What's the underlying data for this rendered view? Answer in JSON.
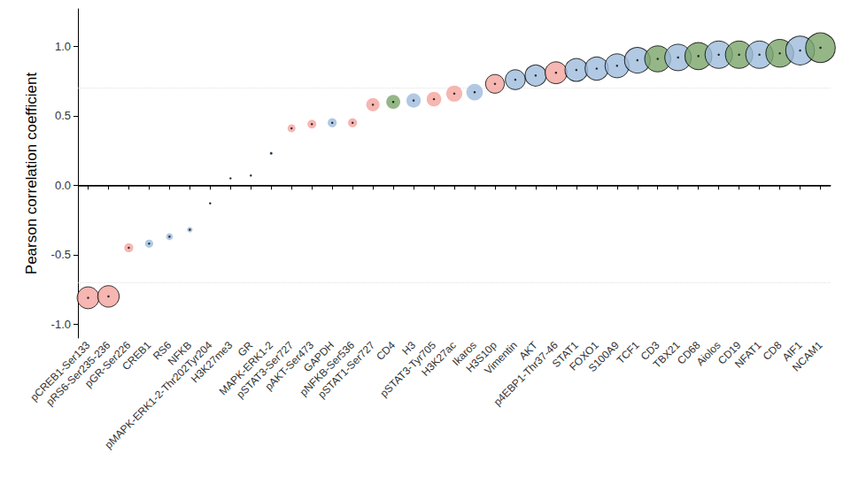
{
  "chart_data": {
    "type": "scatter",
    "y_label": "Pearson correlation coefficient",
    "categories": [
      "pCREB1-Ser133",
      "pRS6-Ser235-236",
      "pGR-Ser226",
      "CREB1",
      "RS6",
      "NFKB",
      "pMAPK-ERK1-2-Thr202Tyr204",
      "H3K27me3",
      "GR",
      "MAPK-ERK1-2",
      "pSTAT3-Ser727",
      "pAKT-Ser473",
      "GAPDH",
      "pNFKB-Ser536",
      "pSTAT1-Ser727",
      "CD4",
      "H3",
      "pSTAT3-Tyr705",
      "H3K27ac",
      "Ikaros",
      "H3S10p",
      "Vimentin",
      "AKT",
      "p4EBP1-Thr37-46",
      "STAT1",
      "FOXO1",
      "S100A9",
      "TCF1",
      "CD3",
      "TBX21",
      "CD68",
      "Aiolos",
      "CD19",
      "NFAT1",
      "CD8",
      "AIF1",
      "NCAM1"
    ],
    "values": [
      -0.81,
      -0.8,
      -0.45,
      -0.42,
      -0.37,
      -0.32,
      -0.13,
      0.05,
      0.07,
      0.23,
      0.41,
      0.44,
      0.45,
      0.45,
      0.58,
      0.6,
      0.61,
      0.62,
      0.66,
      0.67,
      0.73,
      0.76,
      0.79,
      0.81,
      0.83,
      0.84,
      0.86,
      0.9,
      0.91,
      0.92,
      0.93,
      0.94,
      0.94,
      0.94,
      0.95,
      0.97,
      0.99
    ],
    "colors": [
      "#f4a49d",
      "#f4a49d",
      "#f4a49d",
      "#9dbbdc",
      "#9dbbdc",
      "#9dbbdc",
      "#f4a49d",
      "#f4a49d",
      "#9dbbdc",
      "#9dbbdc",
      "#f4a49d",
      "#f4a49d",
      "#9dbbdc",
      "#f4a49d",
      "#f4a49d",
      "#7aa468",
      "#9dbbdc",
      "#f4a49d",
      "#f4a49d",
      "#9dbbdc",
      "#f4a49d",
      "#9dbbdc",
      "#9dbbdc",
      "#f4a49d",
      "#9dbbdc",
      "#9dbbdc",
      "#9dbbdc",
      "#9dbbdc",
      "#7aa468",
      "#9dbbdc",
      "#7aa468",
      "#9dbbdc",
      "#7aa468",
      "#9dbbdc",
      "#7aa468",
      "#9dbbdc",
      "#7aa468"
    ],
    "marker": "circle",
    "ylim": [
      -1.1,
      1.27
    ],
    "yticks": [
      {
        "value": -1,
        "label": "-1.0"
      },
      -0.5,
      {
        "value": 0,
        "label": "0.0"
      },
      0.5,
      {
        "value": 1,
        "label": "1.0"
      }
    ],
    "reference_lines": [
      {
        "value": -0.7,
        "line_style": "dotted"
      },
      {
        "value": 0,
        "line_style": "solid"
      },
      {
        "value": 0.7,
        "line_style": "dotted"
      }
    ],
    "grid": false
  }
}
